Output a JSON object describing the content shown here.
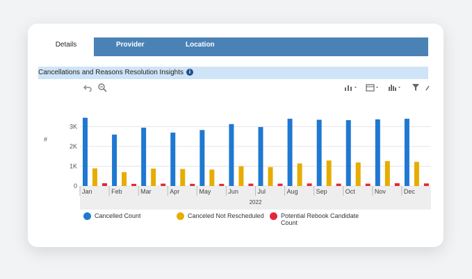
{
  "tabs": [
    {
      "label": "Details"
    },
    {
      "label": "Provider"
    },
    {
      "label": "Location"
    }
  ],
  "widget": {
    "title": "Cancellations and Reasons Resolution Insights",
    "info_icon": "info-icon"
  },
  "toolbar": {
    "icons": [
      "undo-icon",
      "zoom-out-icon",
      "add-series-icon",
      "calendar-icon",
      "chart-type-icon",
      "filter-icon",
      "expand-icon"
    ]
  },
  "colors": {
    "cancelled": "#1f78d1",
    "canceled_not_rescheduled": "#e6ad00",
    "potential_rebook": "#e0283a"
  },
  "chart_data": {
    "type": "bar",
    "categories": [
      "Jan",
      "Feb",
      "Mar",
      "Apr",
      "May",
      "Jun",
      "Jul",
      "Aug",
      "Sep",
      "Oct",
      "Nov",
      "Dec"
    ],
    "group_label": "2022",
    "ylabel": "#",
    "yticks": [
      "0",
      "1K",
      "2K",
      "3K"
    ],
    "ylim": [
      0,
      4000
    ],
    "series": [
      {
        "name": "Cancelled Count",
        "values": [
          3450,
          2600,
          2950,
          2700,
          2830,
          3130,
          2980,
          3400,
          3350,
          3330,
          3370,
          3400
        ]
      },
      {
        "name": "Canceled Not Rescheduled",
        "values": [
          890,
          700,
          880,
          860,
          830,
          1000,
          960,
          1140,
          1290,
          1190,
          1260,
          1220
        ]
      },
      {
        "name": "Potential Rebook Candidate Count",
        "values": [
          140,
          110,
          120,
          110,
          110,
          120,
          120,
          130,
          120,
          120,
          140,
          130
        ]
      }
    ],
    "grid": true,
    "legend_placement": "bottom"
  }
}
